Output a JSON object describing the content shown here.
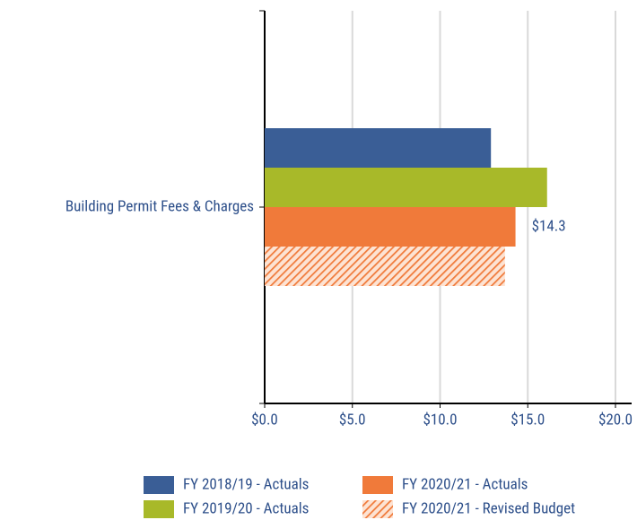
{
  "chart_data": {
    "type": "hbar",
    "categories": [
      "Building Permit Fees & Charges"
    ],
    "series": [
      {
        "name": "FY 2018/19 - Actuals",
        "color": "#3a5e96",
        "values": [
          12.9
        ]
      },
      {
        "name": "FY 2019/20 - Actuals",
        "color": "#a8b929",
        "values": [
          16.1
        ]
      },
      {
        "name": "FY 2020/21 - Actuals",
        "color": "#f07a3a",
        "values": [
          14.3
        ],
        "value_labels": [
          "$14.3"
        ]
      },
      {
        "name": "FY 2020/21 - Revised Budget",
        "color": "#f07a3a",
        "hatch": true,
        "values": [
          13.7
        ]
      }
    ],
    "xlim": [
      0,
      20
    ],
    "xticks": [
      {
        "value": 0,
        "label": "$0.0"
      },
      {
        "value": 5,
        "label": "$5.0"
      },
      {
        "value": 10,
        "label": "$10.0"
      },
      {
        "value": 15,
        "label": "$15.0"
      },
      {
        "value": 20,
        "label": "$20.0"
      }
    ],
    "grid": true,
    "legend": "bottom"
  }
}
